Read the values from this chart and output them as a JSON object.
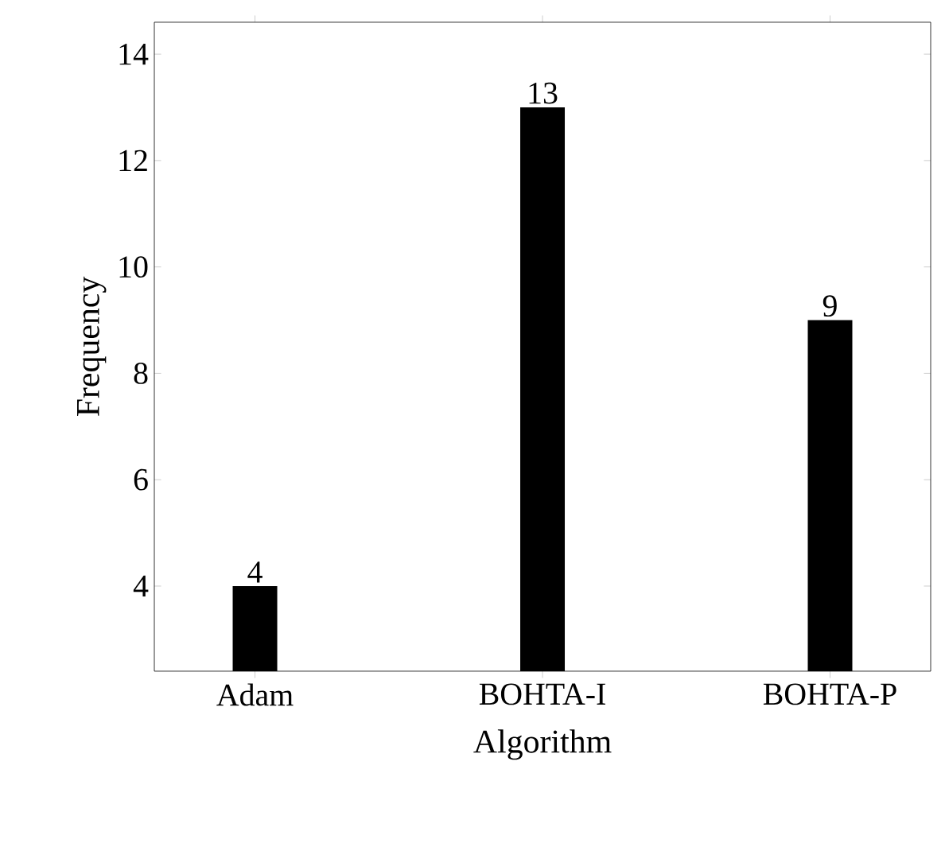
{
  "chart_data": {
    "type": "bar",
    "xlabel": "Algorithm",
    "ylabel": "Frequency",
    "categories": [
      "Adam",
      "BOHTA-I",
      "BOHTA-P"
    ],
    "values": [
      4,
      13,
      9
    ],
    "color": "#000000",
    "ylim": [
      2.4,
      14.6
    ],
    "yticks": [
      4,
      6,
      8,
      10,
      12,
      14
    ],
    "data_labels": true
  }
}
